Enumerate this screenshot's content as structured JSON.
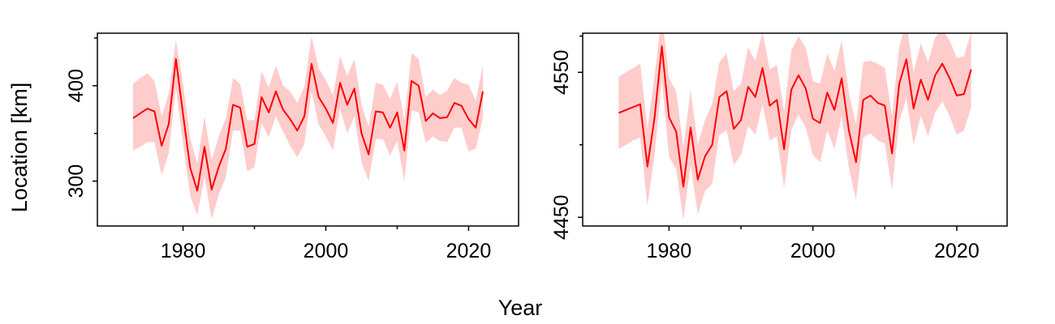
{
  "figure": {
    "shared_xlabel": "Year",
    "shared_ylabel": "Location [km]",
    "colors": {
      "line": "#ff0000",
      "band": "#ffcccc",
      "axis": "#000000",
      "background": "#ffffff"
    }
  },
  "chart_data": [
    {
      "type": "line",
      "title": "",
      "xlabel": "Year",
      "ylabel": "Location [km]",
      "xlim": [
        1968,
        2027
      ],
      "ylim": [
        253,
        455
      ],
      "x_ticks": [
        1980,
        2000,
        2020
      ],
      "x_minor_ticks": [
        1990,
        2010
      ],
      "y_ticks": [
        300,
        400
      ],
      "y_minor_ticks": [
        350,
        450
      ],
      "grid": false,
      "legend": "none",
      "series": [
        {
          "role": "mean",
          "x": [
            1973,
            1974,
            1975,
            1976,
            1977,
            1978,
            1979,
            1980,
            1981,
            1982,
            1983,
            1984,
            1985,
            1986,
            1987,
            1988,
            1989,
            1990,
            1991,
            1992,
            1993,
            1994,
            1995,
            1996,
            1997,
            1998,
            1999,
            2000,
            2001,
            2002,
            2003,
            2004,
            2005,
            2006,
            2007,
            2008,
            2009,
            2010,
            2011,
            2012,
            2013,
            2014,
            2015,
            2016,
            2017,
            2018,
            2019,
            2020,
            2021,
            2022
          ],
          "y": [
            366,
            371,
            376,
            373,
            337,
            360,
            428,
            370,
            314,
            290,
            336,
            291,
            315,
            334,
            380,
            377,
            336,
            339,
            388,
            372,
            394,
            375,
            365,
            353,
            368,
            423,
            388,
            376,
            361,
            403,
            380,
            397,
            350,
            328,
            373,
            372,
            356,
            372,
            332,
            405,
            400,
            363,
            371,
            366,
            367,
            382,
            379,
            365,
            356,
            394
          ],
          "lower": [
            332,
            336,
            341,
            341,
            306,
            329,
            398,
            339,
            285,
            264,
            305,
            260,
            286,
            304,
            353,
            353,
            310,
            315,
            361,
            346,
            368,
            352,
            337,
            325,
            339,
            394,
            359,
            347,
            332,
            376,
            350,
            368,
            320,
            300,
            344,
            344,
            327,
            342,
            300,
            374,
            372,
            340,
            347,
            342,
            341,
            356,
            356,
            331,
            334,
            366
          ],
          "upper": [
            402,
            408,
            413,
            405,
            368,
            392,
            448,
            402,
            345,
            318,
            368,
            322,
            347,
            366,
            408,
            402,
            364,
            364,
            415,
            398,
            421,
            400,
            394,
            382,
            399,
            452,
            418,
            406,
            390,
            431,
            410,
            428,
            380,
            357,
            403,
            401,
            386,
            404,
            364,
            434,
            428,
            388,
            396,
            390,
            395,
            408,
            403,
            401,
            384,
            421
          ]
        }
      ]
    },
    {
      "type": "line",
      "title": "",
      "xlabel": "Year",
      "ylabel": "",
      "xlim": [
        1968,
        2027
      ],
      "ylim": [
        4444,
        4577
      ],
      "x_ticks": [
        1980,
        2000,
        2020
      ],
      "x_minor_ticks": [
        1990,
        2010
      ],
      "y_ticks": [
        4450,
        4550
      ],
      "y_minor_ticks": [
        4500,
        4575
      ],
      "grid": false,
      "legend": "none",
      "series": [
        {
          "role": "mean",
          "x": [
            1973,
            1974,
            1975,
            1976,
            1977,
            1978,
            1979,
            1980,
            1981,
            1982,
            1983,
            1984,
            1985,
            1986,
            1987,
            1988,
            1989,
            1990,
            1991,
            1992,
            1993,
            1994,
            1995,
            1996,
            1997,
            1998,
            1999,
            2000,
            2001,
            2002,
            2003,
            2004,
            2005,
            2006,
            2007,
            2008,
            2009,
            2010,
            2011,
            2012,
            2013,
            2014,
            2015,
            2016,
            2017,
            2018,
            2019,
            2020,
            2021,
            2022
          ],
          "y": [
            4522,
            4524,
            4526,
            4528,
            4485,
            4519,
            4568,
            4519,
            4509,
            4471,
            4512,
            4476,
            4492,
            4500,
            4533,
            4537,
            4511,
            4517,
            4540,
            4533,
            4553,
            4527,
            4531,
            4497,
            4538,
            4548,
            4539,
            4518,
            4515,
            4536,
            4524,
            4546,
            4510,
            4488,
            4531,
            4534,
            4529,
            4527,
            4494,
            4542,
            4559,
            4525,
            4545,
            4531,
            4548,
            4556,
            4546,
            4534,
            4535,
            4552
          ],
          "lower": [
            4497,
            4500,
            4503,
            4505,
            4458,
            4493,
            4545,
            4492,
            4483,
            4448,
            4486,
            4452,
            4468,
            4473,
            4507,
            4510,
            4486,
            4493,
            4513,
            4507,
            4528,
            4503,
            4506,
            4470,
            4510,
            4521,
            4512,
            4493,
            4488,
            4510,
            4497,
            4520,
            4484,
            4462,
            4505,
            4508,
            4503,
            4501,
            4469,
            4516,
            4532,
            4500,
            4520,
            4506,
            4522,
            4530,
            4520,
            4507,
            4510,
            4526
          ],
          "upper": [
            4547,
            4550,
            4553,
            4556,
            4511,
            4548,
            4590,
            4546,
            4537,
            4498,
            4538,
            4500,
            4517,
            4528,
            4557,
            4563,
            4537,
            4542,
            4567,
            4558,
            4578,
            4552,
            4555,
            4523,
            4565,
            4575,
            4567,
            4544,
            4542,
            4563,
            4551,
            4572,
            4536,
            4514,
            4557,
            4558,
            4556,
            4553,
            4520,
            4568,
            4584,
            4550,
            4570,
            4557,
            4574,
            4580,
            4572,
            4560,
            4561,
            4578
          ]
        }
      ]
    }
  ]
}
